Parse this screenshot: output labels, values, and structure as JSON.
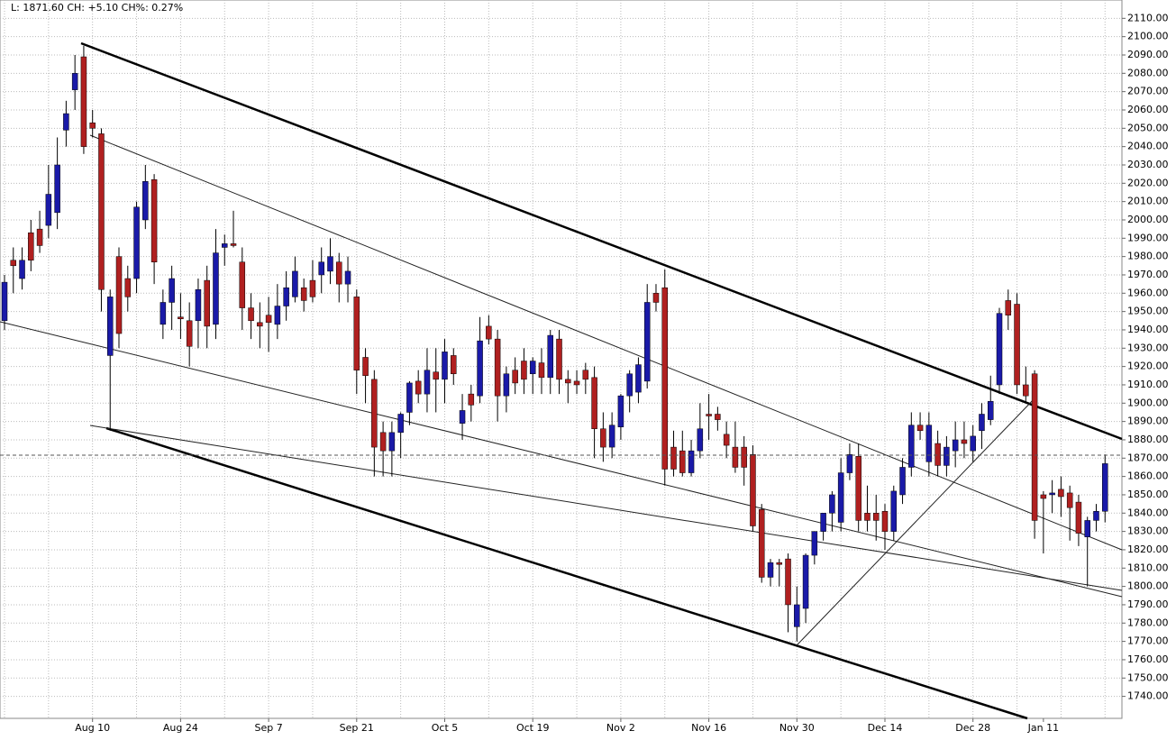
{
  "header": "L: 1871.60 CH: +5.10 CH%: 0.27%",
  "chart_data": {
    "type": "candlestick",
    "categories": [
      null,
      null,
      null,
      null,
      null,
      null,
      null,
      null,
      null,
      null,
      "Aug 10",
      null,
      null,
      null,
      null,
      null,
      null,
      null,
      null,
      null,
      "Aug 24",
      null,
      null,
      null,
      null,
      null,
      null,
      null,
      null,
      null,
      "Sep 7",
      null,
      null,
      null,
      null,
      null,
      null,
      null,
      null,
      null,
      "Sep 21",
      null,
      null,
      null,
      null,
      null,
      null,
      null,
      null,
      null,
      "Oct 5",
      null,
      null,
      null,
      null,
      null,
      null,
      null,
      null,
      null,
      "Oct 19",
      null,
      null,
      null,
      null,
      null,
      null,
      null,
      null,
      null,
      "Nov 2",
      null,
      null,
      null,
      null,
      null,
      null,
      null,
      null,
      null,
      "Nov 16",
      null,
      null,
      null,
      null,
      null,
      null,
      null,
      null,
      null,
      "Nov 30",
      null,
      null,
      null,
      null,
      null,
      null,
      null,
      null,
      null,
      "Dec 14",
      null,
      null,
      null,
      null,
      null,
      null,
      null,
      null,
      null,
      "Dec 28",
      null,
      null,
      null,
      null,
      null,
      null,
      null,
      "Jan 11",
      null,
      null,
      null,
      null,
      null,
      null,
      null
    ],
    "open": [
      1945,
      1978,
      1968,
      1993,
      1995,
      1997,
      2004,
      2049,
      2071,
      2089,
      2053,
      2047,
      1926,
      1980,
      1968,
      1968,
      2000,
      2022,
      1943,
      1955,
      1947,
      1945,
      1945,
      1967,
      1943,
      1985,
      1987,
      1977,
      1952,
      1944,
      1948,
      1943,
      1953,
      1958,
      1963,
      1967,
      1970,
      1972,
      1977,
      1965,
      1958,
      1925,
      1913,
      1884,
      1874,
      1884,
      1895,
      1912,
      1905,
      1917,
      1913,
      1926,
      1889,
      1905,
      1904,
      1942,
      1935,
      1904,
      1918,
      1923,
      1916,
      1922,
      1914,
      1935,
      1913,
      1912,
      1918,
      1914,
      1886,
      1876,
      1887,
      1904,
      1906,
      1912,
      1960,
      1963,
      1876,
      1874,
      1862,
      1874,
      1894,
      1894,
      1883,
      1876,
      1876,
      1872,
      1842,
      1805,
      1813,
      1815,
      1778,
      1788,
      1817,
      1830,
      1840,
      1835,
      1862,
      1871,
      1840,
      1840,
      1841,
      1830,
      1850,
      1865,
      1888,
      1868,
      1878,
      1866,
      1874,
      1880,
      1874,
      1885,
      1891,
      1910,
      1956,
      1954,
      1910,
      1916,
      1850,
      1850,
      1853,
      1851,
      1846,
      1827,
      1836,
      1841
    ],
    "high": [
      1970,
      1985,
      1985,
      2000,
      2005,
      2030,
      2045,
      2065,
      2090,
      2095,
      2060,
      2050,
      1962,
      1985,
      1975,
      2010,
      2030,
      2025,
      1962,
      1975,
      1960,
      1955,
      1968,
      1975,
      1995,
      1992,
      2005,
      1985,
      1960,
      1955,
      1958,
      1965,
      1972,
      1980,
      1968,
      1978,
      1985,
      1990,
      1982,
      1980,
      1962,
      1930,
      1918,
      1890,
      1890,
      1895,
      1912,
      1918,
      1930,
      1930,
      1935,
      1930,
      1905,
      1910,
      1947,
      1948,
      1940,
      1920,
      1925,
      1930,
      1925,
      1930,
      1940,
      1940,
      1918,
      1918,
      1922,
      1920,
      1895,
      1895,
      1905,
      1918,
      1925,
      1965,
      1965,
      1973,
      1885,
      1885,
      1880,
      1900,
      1905,
      1898,
      1890,
      1890,
      1882,
      1877,
      1845,
      1815,
      1815,
      1818,
      1800,
      1818,
      1830,
      1840,
      1852,
      1870,
      1878,
      1878,
      1855,
      1850,
      1845,
      1855,
      1870,
      1895,
      1895,
      1895,
      1885,
      1882,
      1890,
      1890,
      1888,
      1900,
      1915,
      1952,
      1962,
      1960,
      1920,
      1918,
      1852,
      1858,
      1860,
      1855,
      1850,
      1838,
      1845,
      1872
    ],
    "low": [
      1940,
      1960,
      1962,
      1972,
      1982,
      1990,
      1995,
      2040,
      2060,
      2036,
      2045,
      1950,
      1885,
      1930,
      1950,
      1960,
      1995,
      1965,
      1935,
      1940,
      1935,
      1920,
      1930,
      1930,
      1935,
      1975,
      1985,
      1940,
      1935,
      1930,
      1928,
      1935,
      1945,
      1955,
      1950,
      1955,
      1960,
      1965,
      1955,
      1955,
      1905,
      1900,
      1860,
      1860,
      1860,
      1870,
      1888,
      1900,
      1895,
      1895,
      1900,
      1910,
      1880,
      1890,
      1900,
      1932,
      1890,
      1895,
      1905,
      1905,
      1905,
      1905,
      1905,
      1905,
      1900,
      1905,
      1905,
      1870,
      1868,
      1870,
      1880,
      1895,
      1900,
      1908,
      1950,
      1855,
      1860,
      1860,
      1860,
      1870,
      1880,
      1885,
      1870,
      1862,
      1855,
      1830,
      1802,
      1800,
      1800,
      1775,
      1770,
      1780,
      1812,
      1825,
      1830,
      1830,
      1858,
      1830,
      1830,
      1825,
      1820,
      1825,
      1845,
      1860,
      1880,
      1860,
      1860,
      1860,
      1865,
      1870,
      1868,
      1875,
      1888,
      1905,
      1940,
      1905,
      1900,
      1826,
      1818,
      1840,
      1838,
      1825,
      1822,
      1800,
      1830,
      1835
    ],
    "close": [
      1966,
      1975,
      1978,
      1978,
      1986,
      2014,
      2030,
      2058,
      2080,
      2040,
      2050,
      1962,
      1958,
      1938,
      1958,
      2007,
      2021,
      1977,
      1955,
      1968,
      1946,
      1931,
      1962,
      1942,
      1982,
      1987,
      1986,
      1952,
      1945,
      1942,
      1944,
      1953,
      1963,
      1972,
      1956,
      1958,
      1977,
      1980,
      1965,
      1972,
      1918,
      1915,
      1876,
      1874,
      1884,
      1894,
      1911,
      1905,
      1918,
      1913,
      1928,
      1916,
      1896,
      1899,
      1934,
      1935,
      1904,
      1916,
      1911,
      1913,
      1923,
      1914,
      1937,
      1913,
      1911,
      1910,
      1913,
      1886,
      1876,
      1888,
      1904,
      1916,
      1921,
      1955,
      1955,
      1864,
      1864,
      1862,
      1874,
      1886,
      1893,
      1891,
      1877,
      1865,
      1865,
      1833,
      1805,
      1813,
      1812,
      1790,
      1790,
      1817,
      1830,
      1840,
      1850,
      1862,
      1872,
      1836,
      1836,
      1836,
      1830,
      1852,
      1865,
      1888,
      1885,
      1888,
      1866,
      1876,
      1880,
      1878,
      1882,
      1894,
      1901,
      1949,
      1948,
      1910,
      1904,
      1836,
      1848,
      1851,
      1849,
      1843,
      1829,
      1836,
      1841,
      1867
    ],
    "up_color": "#1a1aa8",
    "down_color": "#b02020",
    "last": 1871.6,
    "ylim": [
      1728,
      2120
    ],
    "yticks": [
      {
        "value": 1740,
        "label": "1740.00"
      },
      {
        "value": 1750,
        "label": "1750.00"
      },
      {
        "value": 1760,
        "label": "1760.00"
      },
      {
        "value": 1770,
        "label": "1770.00"
      },
      {
        "value": 1780,
        "label": "1780.00"
      },
      {
        "value": 1790,
        "label": "1790.00"
      },
      {
        "value": 1800,
        "label": "1800.00"
      },
      {
        "value": 1810,
        "label": "1810.00"
      },
      {
        "value": 1820,
        "label": "1820.00"
      },
      {
        "value": 1830,
        "label": "1830.00"
      },
      {
        "value": 1840,
        "label": "1840.00"
      },
      {
        "value": 1850,
        "label": "1850.00"
      },
      {
        "value": 1860,
        "label": "1860.00"
      },
      {
        "value": 1870,
        "label": "1870.00"
      },
      {
        "value": 1880,
        "label": "1880.00"
      },
      {
        "value": 1890,
        "label": "1890.00"
      },
      {
        "value": 1900,
        "label": "1900.00"
      },
      {
        "value": 1910,
        "label": "1910.00"
      },
      {
        "value": 1920,
        "label": "1920.00"
      },
      {
        "value": 1930,
        "label": "1930.00"
      },
      {
        "value": 1940,
        "label": "1940.00"
      },
      {
        "value": 1950,
        "label": "1950.00"
      },
      {
        "value": 1960,
        "label": "1960.00"
      },
      {
        "value": 1970,
        "label": "1970.00"
      },
      {
        "value": 1980,
        "label": "1980.00"
      },
      {
        "value": 1990,
        "label": "1990.00"
      },
      {
        "value": 2000,
        "label": "2000.00"
      },
      {
        "value": 2010,
        "label": "2010.00"
      },
      {
        "value": 2020,
        "label": "2020.00"
      },
      {
        "value": 2030,
        "label": "2030.00"
      },
      {
        "value": 2040,
        "label": "2040.00"
      },
      {
        "value": 2050,
        "label": "2050.00"
      },
      {
        "value": 2060,
        "label": "2060.00"
      },
      {
        "value": 2070,
        "label": "2070.00"
      },
      {
        "value": 2080,
        "label": "2080.00"
      },
      {
        "value": 2090,
        "label": "2090.00"
      },
      {
        "value": 2100,
        "label": "2100.00"
      },
      {
        "value": 2110,
        "label": "2110.00"
      }
    ],
    "grid": true
  }
}
